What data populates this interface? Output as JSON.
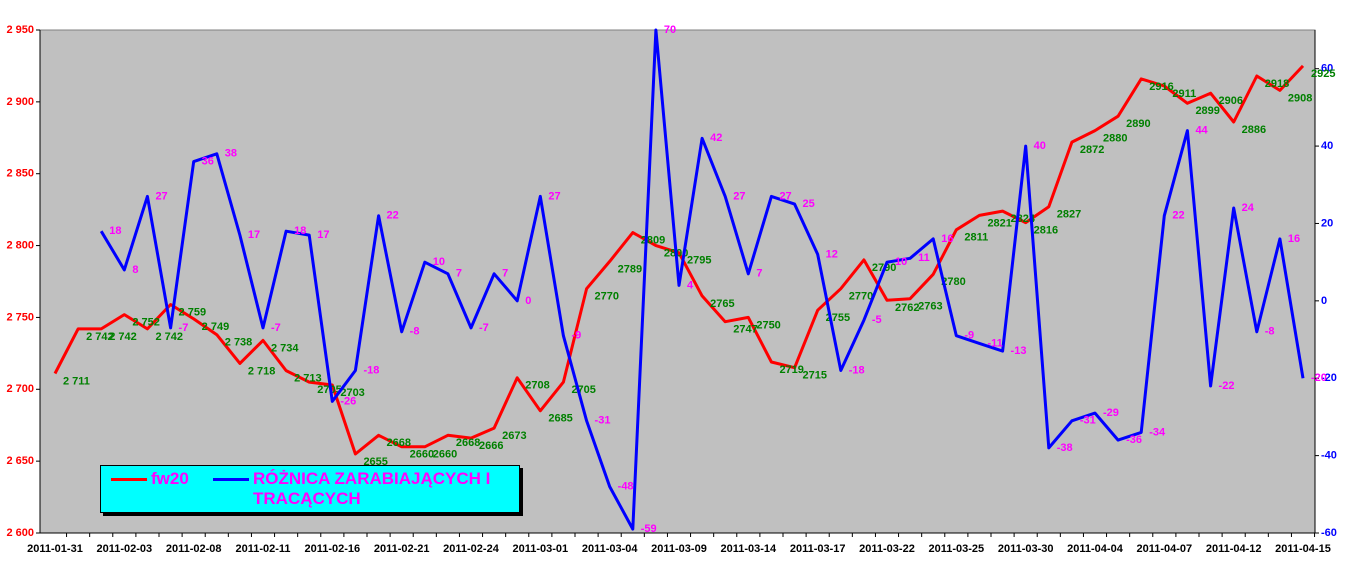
{
  "chart_data": {
    "type": "line",
    "categories": [
      "2011-01-31",
      null,
      null,
      "2011-02-03",
      null,
      null,
      "2011-02-08",
      null,
      null,
      "2011-02-11",
      null,
      null,
      "2011-02-16",
      null,
      null,
      "2011-02-21",
      null,
      null,
      "2011-02-24",
      null,
      null,
      "2011-03-01",
      null,
      null,
      "2011-03-04",
      null,
      null,
      "2011-03-09",
      null,
      null,
      "2011-03-14",
      null,
      null,
      "2011-03-17",
      null,
      null,
      "2011-03-22",
      null,
      null,
      "2011-03-25",
      null,
      null,
      "2011-03-30",
      null,
      null,
      "2011-04-04",
      null,
      null,
      "2011-04-07",
      null,
      null,
      "2011-04-12",
      null,
      null,
      "2011-04-15"
    ],
    "series": [
      {
        "name": "fw20",
        "color": "#ff0000",
        "label_color": "#008000",
        "values": [
          2711,
          2742,
          2742,
          2752,
          2742,
          2759,
          2749,
          2738,
          2718,
          2734,
          2713,
          2705,
          2703,
          2655,
          2668,
          2660,
          2660,
          2668,
          2666,
          2673,
          2708,
          2685,
          2705,
          2770,
          2789,
          2809,
          2800,
          2795,
          2765,
          2747,
          2750,
          2719,
          2715,
          2755,
          2770,
          2790,
          2762,
          2763,
          2780,
          2811,
          2821,
          2824,
          2816,
          2827,
          2872,
          2880,
          2890,
          2916,
          2911,
          2899,
          2906,
          2886,
          2918,
          2908,
          2925
        ],
        "value_labels": [
          "2 711",
          "2 742",
          "2 742",
          "2 752",
          "2 742",
          "2 759",
          "2 749",
          "2 738",
          "2 718",
          "2 734",
          "2 713",
          "2705",
          "2703",
          "2655",
          "2668",
          "2660",
          "2660",
          "2668",
          "2666",
          "2673",
          "2708",
          "2685",
          "2705",
          "2770",
          "2789",
          "2809",
          "2800",
          "2795",
          "2765",
          "2747",
          "2750",
          "2719",
          "2715",
          "2755",
          "2770",
          "2790",
          "2762",
          "2763",
          "2780",
          "2811",
          "2821",
          "2824",
          "2816",
          "2827",
          "2872",
          "2880",
          "2890",
          "2916",
          "2911",
          "2899",
          "2906",
          "2886",
          "2918",
          "2908",
          "2925"
        ]
      },
      {
        "name": "RÓŻNICA ZARABIAJĄCYCH I TRACĄCYCH",
        "color": "#0000ff",
        "label_color": "#ff00ff",
        "axis": "y2",
        "values": [
          null,
          null,
          18,
          8,
          27,
          -7,
          36,
          38,
          17,
          -7,
          18,
          17,
          -26,
          -18,
          22,
          -8,
          10,
          7,
          -7,
          7,
          0,
          27,
          -9,
          -31,
          -48,
          -59,
          70,
          4,
          42,
          27,
          7,
          27,
          25,
          12,
          -18,
          -5,
          10,
          11,
          16,
          -9,
          -11,
          -13,
          40,
          -38,
          -31,
          -29,
          -36,
          -34,
          22,
          44,
          -22,
          24,
          -8,
          16,
          -20
        ]
      }
    ],
    "ylim": [
      2600,
      2950
    ],
    "yticks": [
      {
        "value": 2600,
        "label": "2 600"
      },
      {
        "value": 2650,
        "label": "2 650"
      },
      {
        "value": 2700,
        "label": "2 700"
      },
      {
        "value": 2750,
        "label": "2 750"
      },
      {
        "value": 2800,
        "label": "2 800"
      },
      {
        "value": 2850,
        "label": "2 850"
      },
      {
        "value": 2900,
        "label": "2 900"
      },
      {
        "value": 2950,
        "label": "2 950"
      }
    ],
    "y2lim": [
      -60,
      70
    ],
    "y2ticks": [
      -60,
      -40,
      -20,
      0,
      20,
      40,
      60
    ],
    "ytick_color": "#ff0000",
    "y2tick_color": "#0000ff",
    "background": "#c0c0c0",
    "legend": "lower left"
  }
}
